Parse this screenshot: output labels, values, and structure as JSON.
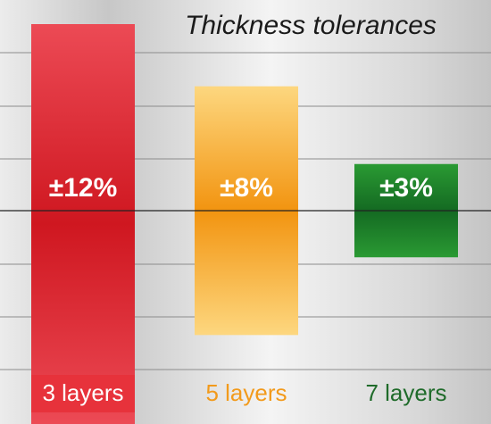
{
  "chart_data": {
    "type": "bar",
    "subtype": "floating symmetric range around a central baseline",
    "title": "Thickness tolerances",
    "categories": [
      "3 layers",
      "5 layers",
      "7 layers"
    ],
    "bar_labels": [
      "±12%",
      "±8%",
      "±3%"
    ],
    "tolerance_percent": [
      12,
      8,
      3
    ],
    "baseline": 0,
    "ylim": [
      -15,
      15
    ],
    "grid": true,
    "colors": {
      "3 layers": "#d81f2a",
      "5 layers": "#f59c1a",
      "7 layers": "#1f8a2e",
      "label_3_layers_bg": "#e7323b",
      "label_5_layers_text": "#f29a1b",
      "label_7_layers_text": "#1f6b2a",
      "background_light": "#f2f2f2",
      "background_mid": "#c9c9c9",
      "grid": "#8c8c8c",
      "baseline": "#222222"
    }
  }
}
